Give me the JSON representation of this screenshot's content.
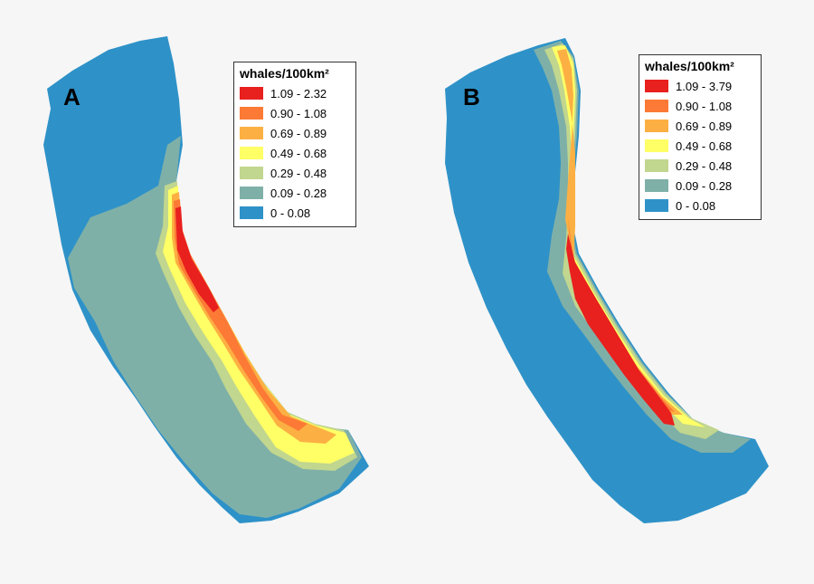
{
  "colors": {
    "c0": "#2e92c8",
    "c1": "#7fb0a8",
    "c2": "#c1d68e",
    "c3": "#ffff66",
    "c4": "#fcb043",
    "c5": "#fc7a35",
    "c6": "#e8201e"
  },
  "panels": [
    {
      "letter": "A",
      "legend_title": "whales/100km²",
      "classes": [
        {
          "label": "1.09 - 2.32",
          "color": "#e8201e"
        },
        {
          "label": "0.90 - 1.08",
          "color": "#fc7a35"
        },
        {
          "label": "0.69 - 0.89",
          "color": "#fcb043"
        },
        {
          "label": "0.49 - 0.68",
          "color": "#ffff66"
        },
        {
          "label": "0.29 - 0.48",
          "color": "#c1d68e"
        },
        {
          "label": "0.09 - 0.28",
          "color": "#7fb0a8"
        },
        {
          "label": "0 - 0.08",
          "color": "#2e92c8"
        }
      ]
    },
    {
      "letter": "B",
      "legend_title": "whales/100km²",
      "classes": [
        {
          "label": "1.09 - 3.79",
          "color": "#e8201e"
        },
        {
          "label": "0.90 - 1.08",
          "color": "#fc7a35"
        },
        {
          "label": "0.69 - 0.89",
          "color": "#fcb043"
        },
        {
          "label": "0.49 - 0.68",
          "color": "#ffff66"
        },
        {
          "label": "0.29 - 0.48",
          "color": "#c1d68e"
        },
        {
          "label": "0.09 - 0.28",
          "color": "#7fb0a8"
        },
        {
          "label": "0 - 0.08",
          "color": "#2e92c8"
        }
      ]
    }
  ]
}
